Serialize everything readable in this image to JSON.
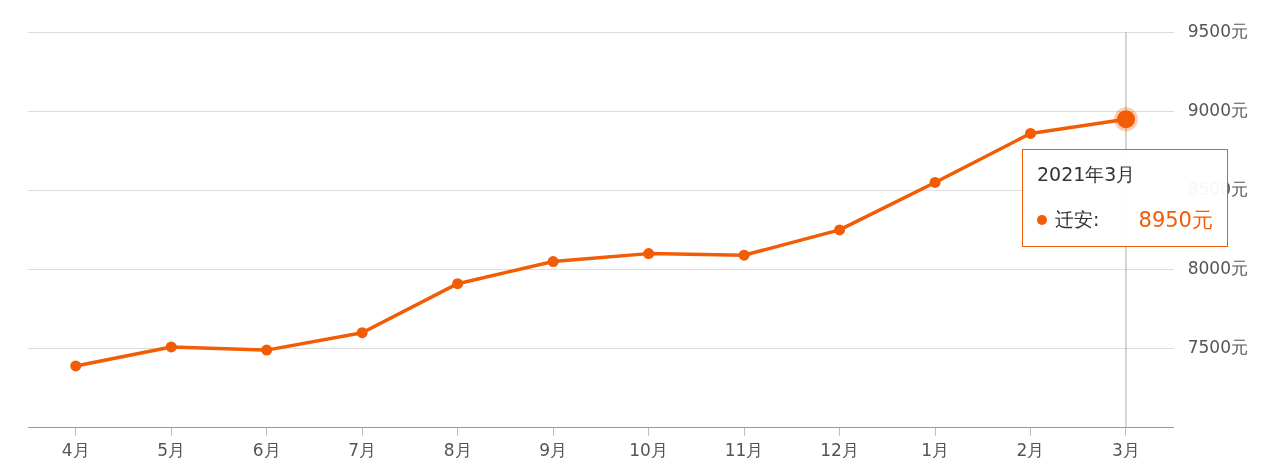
{
  "chart_data": {
    "type": "line",
    "categories": [
      "4月",
      "5月",
      "6月",
      "7月",
      "8月",
      "9月",
      "10月",
      "11月",
      "12月",
      "1月",
      "2月",
      "3月"
    ],
    "series": [
      {
        "name": "迁安:",
        "color": "#f25c05",
        "values": [
          7390,
          7510,
          7490,
          7600,
          7910,
          8050,
          8100,
          8090,
          8250,
          8550,
          8860,
          8950
        ]
      }
    ],
    "ylim": [
      7000,
      9500
    ],
    "yticks": [
      {
        "value": 7500,
        "label": "7500元"
      },
      {
        "value": 8000,
        "label": "8000元"
      },
      {
        "value": 8500,
        "label": "8500元"
      },
      {
        "value": 9000,
        "label": "9000元"
      },
      {
        "value": 9500,
        "label": "9500元"
      }
    ],
    "annotations": [
      {
        "text": "2021年3月",
        "x": "3月",
        "y": 8950
      },
      "8950元"
    ],
    "ref_lines": [
      {
        "axis": "x",
        "value": "3月",
        "color": "#aaaaaa"
      }
    ],
    "grid": "y",
    "legend": "right",
    "marker": "circle",
    "line_style": "solid"
  }
}
